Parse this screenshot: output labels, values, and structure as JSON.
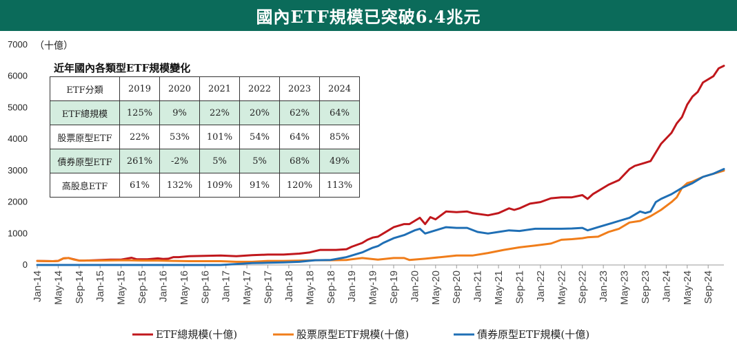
{
  "title": "國內ETF規模已突破6.4兆元",
  "table": {
    "title": "近年國內各類型ETF規模變化",
    "header": [
      "ETF分類",
      "2019",
      "2020",
      "2021",
      "2022",
      "2023",
      "2024"
    ],
    "rows": [
      {
        "label": "ETF總規模",
        "values": [
          "125%",
          "9%",
          "22%",
          "20%",
          "62%",
          "64%"
        ]
      },
      {
        "label": "股票原型ETF",
        "values": [
          "22%",
          "53%",
          "101%",
          "54%",
          "64%",
          "85%"
        ]
      },
      {
        "label": "債券原型ETF",
        "values": [
          "261%",
          "-2%",
          "5%",
          "5%",
          "68%",
          "49%"
        ]
      },
      {
        "label": "高股息ETF",
        "values": [
          "61%",
          "132%",
          "109%",
          "91%",
          "120%",
          "113%"
        ]
      }
    ]
  },
  "chart_data": {
    "type": "line",
    "y_unit_label": "（十億）",
    "ylim": [
      0,
      7000
    ],
    "yticks": [
      0,
      1000,
      2000,
      3000,
      4000,
      5000,
      6000,
      7000
    ],
    "x_start": "2014-01",
    "x_end": "2024-12",
    "xtick_labels": [
      "Jan-14",
      "May-14",
      "Sep-14",
      "Jan-15",
      "May-15",
      "Sep-15",
      "Jan-16",
      "May-16",
      "Sep-16",
      "Jan-17",
      "May-17",
      "Sep-17",
      "Jan-18",
      "May-18",
      "Sep-18",
      "Jan-19",
      "May-19",
      "Sep-19",
      "Jan-20",
      "May-20",
      "Sep-20",
      "Jan-21",
      "May-21",
      "Sep-21",
      "Jan-22",
      "May-22",
      "Sep-22",
      "Jan-23",
      "May-23",
      "Sep-23",
      "Jan-24",
      "May-24",
      "Sep-24"
    ],
    "colors": {
      "total": "#c0171c",
      "equity": "#f07d1a",
      "bond": "#1f6fb5"
    },
    "series": [
      {
        "key": "total",
        "name": "ETF總規模(十億)",
        "points": [
          [
            "2014-01",
            130
          ],
          [
            "2014-04",
            120
          ],
          [
            "2014-05",
            130
          ],
          [
            "2014-06",
            210
          ],
          [
            "2014-07",
            220
          ],
          [
            "2014-08",
            180
          ],
          [
            "2014-09",
            140
          ],
          [
            "2014-10",
            140
          ],
          [
            "2014-12",
            150
          ],
          [
            "2015-03",
            170
          ],
          [
            "2015-05",
            170
          ],
          [
            "2015-06",
            200
          ],
          [
            "2015-07",
            230
          ],
          [
            "2015-08",
            180
          ],
          [
            "2015-10",
            180
          ],
          [
            "2015-12",
            210
          ],
          [
            "2016-01",
            190
          ],
          [
            "2016-02",
            200
          ],
          [
            "2016-03",
            250
          ],
          [
            "2016-04",
            250
          ],
          [
            "2016-06",
            280
          ],
          [
            "2016-09",
            290
          ],
          [
            "2016-12",
            300
          ],
          [
            "2017-03",
            280
          ],
          [
            "2017-06",
            310
          ],
          [
            "2017-09",
            330
          ],
          [
            "2017-12",
            330
          ],
          [
            "2018-03",
            360
          ],
          [
            "2018-05",
            400
          ],
          [
            "2018-07",
            480
          ],
          [
            "2018-10",
            480
          ],
          [
            "2018-12",
            500
          ],
          [
            "2019-01",
            580
          ],
          [
            "2019-03",
            700
          ],
          [
            "2019-04",
            800
          ],
          [
            "2019-05",
            870
          ],
          [
            "2019-06",
            900
          ],
          [
            "2019-07",
            1000
          ],
          [
            "2019-09",
            1200
          ],
          [
            "2019-11",
            1300
          ],
          [
            "2019-12",
            1300
          ],
          [
            "2020-01",
            1400
          ],
          [
            "2020-02",
            1500
          ],
          [
            "2020-03",
            1300
          ],
          [
            "2020-04",
            1520
          ],
          [
            "2020-05",
            1450
          ],
          [
            "2020-07",
            1700
          ],
          [
            "2020-09",
            1680
          ],
          [
            "2020-11",
            1700
          ],
          [
            "2020-12",
            1650
          ],
          [
            "2021-03",
            1580
          ],
          [
            "2021-05",
            1650
          ],
          [
            "2021-07",
            1800
          ],
          [
            "2021-08",
            1750
          ],
          [
            "2021-09",
            1800
          ],
          [
            "2021-11",
            1950
          ],
          [
            "2022-01",
            2000
          ],
          [
            "2022-03",
            2120
          ],
          [
            "2022-05",
            2150
          ],
          [
            "2022-07",
            2150
          ],
          [
            "2022-09",
            2220
          ],
          [
            "2022-10",
            2100
          ],
          [
            "2022-11",
            2250
          ],
          [
            "2022-12",
            2350
          ],
          [
            "2023-02",
            2550
          ],
          [
            "2023-04",
            2700
          ],
          [
            "2023-06",
            3050
          ],
          [
            "2023-07",
            3150
          ],
          [
            "2023-09",
            3250
          ],
          [
            "2023-10",
            3300
          ],
          [
            "2023-12",
            3850
          ],
          [
            "2024-02",
            4200
          ],
          [
            "2024-03",
            4500
          ],
          [
            "2024-04",
            4700
          ],
          [
            "2024-05",
            5100
          ],
          [
            "2024-06",
            5350
          ],
          [
            "2024-07",
            5500
          ],
          [
            "2024-08",
            5800
          ],
          [
            "2024-10",
            6000
          ],
          [
            "2024-11",
            6250
          ],
          [
            "2024-12",
            6330
          ]
        ]
      },
      {
        "key": "equity",
        "name": "股票原型ETF規模(十億)",
        "points": [
          [
            "2014-01",
            130
          ],
          [
            "2014-04",
            120
          ],
          [
            "2014-05",
            130
          ],
          [
            "2014-06",
            210
          ],
          [
            "2014-07",
            220
          ],
          [
            "2014-08",
            170
          ],
          [
            "2014-09",
            140
          ],
          [
            "2014-12",
            140
          ],
          [
            "2015-06",
            150
          ],
          [
            "2015-09",
            140
          ],
          [
            "2015-12",
            140
          ],
          [
            "2016-03",
            130
          ],
          [
            "2016-06",
            120
          ],
          [
            "2016-09",
            120
          ],
          [
            "2016-12",
            120
          ],
          [
            "2017-03",
            100
          ],
          [
            "2017-06",
            100
          ],
          [
            "2017-09",
            130
          ],
          [
            "2017-12",
            130
          ],
          [
            "2018-03",
            140
          ],
          [
            "2018-06",
            150
          ],
          [
            "2018-09",
            150
          ],
          [
            "2018-12",
            160
          ],
          [
            "2019-03",
            220
          ],
          [
            "2019-06",
            170
          ],
          [
            "2019-09",
            220
          ],
          [
            "2019-11",
            220
          ],
          [
            "2019-12",
            160
          ],
          [
            "2020-03",
            200
          ],
          [
            "2020-06",
            250
          ],
          [
            "2020-09",
            300
          ],
          [
            "2020-12",
            300
          ],
          [
            "2021-03",
            380
          ],
          [
            "2021-06",
            480
          ],
          [
            "2021-09",
            560
          ],
          [
            "2021-12",
            620
          ],
          [
            "2022-03",
            680
          ],
          [
            "2022-05",
            800
          ],
          [
            "2022-07",
            820
          ],
          [
            "2022-09",
            850
          ],
          [
            "2022-10",
            880
          ],
          [
            "2022-12",
            900
          ],
          [
            "2023-02",
            1050
          ],
          [
            "2023-04",
            1150
          ],
          [
            "2023-06",
            1350
          ],
          [
            "2023-08",
            1400
          ],
          [
            "2023-10",
            1550
          ],
          [
            "2023-12",
            1750
          ],
          [
            "2024-02",
            2000
          ],
          [
            "2024-03",
            2150
          ],
          [
            "2024-04",
            2450
          ],
          [
            "2024-05",
            2600
          ],
          [
            "2024-06",
            2650
          ],
          [
            "2024-08",
            2800
          ],
          [
            "2024-10",
            2900
          ],
          [
            "2024-12",
            3000
          ]
        ]
      },
      {
        "key": "bond",
        "name": "債券原型ETF規模(十億)",
        "points": [
          [
            "2014-01",
            0
          ],
          [
            "2016-12",
            0
          ],
          [
            "2017-03",
            30
          ],
          [
            "2017-06",
            60
          ],
          [
            "2017-09",
            70
          ],
          [
            "2017-12",
            80
          ],
          [
            "2018-03",
            100
          ],
          [
            "2018-06",
            150
          ],
          [
            "2018-09",
            160
          ],
          [
            "2018-12",
            250
          ],
          [
            "2019-03",
            400
          ],
          [
            "2019-05",
            550
          ],
          [
            "2019-06",
            600
          ],
          [
            "2019-07",
            700
          ],
          [
            "2019-09",
            850
          ],
          [
            "2019-11",
            950
          ],
          [
            "2020-01",
            1100
          ],
          [
            "2020-02",
            1150
          ],
          [
            "2020-03",
            1000
          ],
          [
            "2020-05",
            1100
          ],
          [
            "2020-07",
            1200
          ],
          [
            "2020-09",
            1180
          ],
          [
            "2020-11",
            1180
          ],
          [
            "2021-01",
            1050
          ],
          [
            "2021-03",
            1000
          ],
          [
            "2021-05",
            1050
          ],
          [
            "2021-07",
            1100
          ],
          [
            "2021-09",
            1080
          ],
          [
            "2021-12",
            1150
          ],
          [
            "2022-03",
            1150
          ],
          [
            "2022-05",
            1150
          ],
          [
            "2022-07",
            1160
          ],
          [
            "2022-09",
            1180
          ],
          [
            "2022-10",
            1100
          ],
          [
            "2022-12",
            1200
          ],
          [
            "2023-02",
            1300
          ],
          [
            "2023-04",
            1400
          ],
          [
            "2023-06",
            1500
          ],
          [
            "2023-08",
            1700
          ],
          [
            "2023-09",
            1650
          ],
          [
            "2023-10",
            1700
          ],
          [
            "2023-11",
            2000
          ],
          [
            "2023-12",
            2100
          ],
          [
            "2024-02",
            2250
          ],
          [
            "2024-04",
            2450
          ],
          [
            "2024-06",
            2600
          ],
          [
            "2024-08",
            2800
          ],
          [
            "2024-10",
            2900
          ],
          [
            "2024-12",
            3050
          ]
        ]
      }
    ],
    "legend": {
      "position": "bottom"
    },
    "grid": false
  }
}
